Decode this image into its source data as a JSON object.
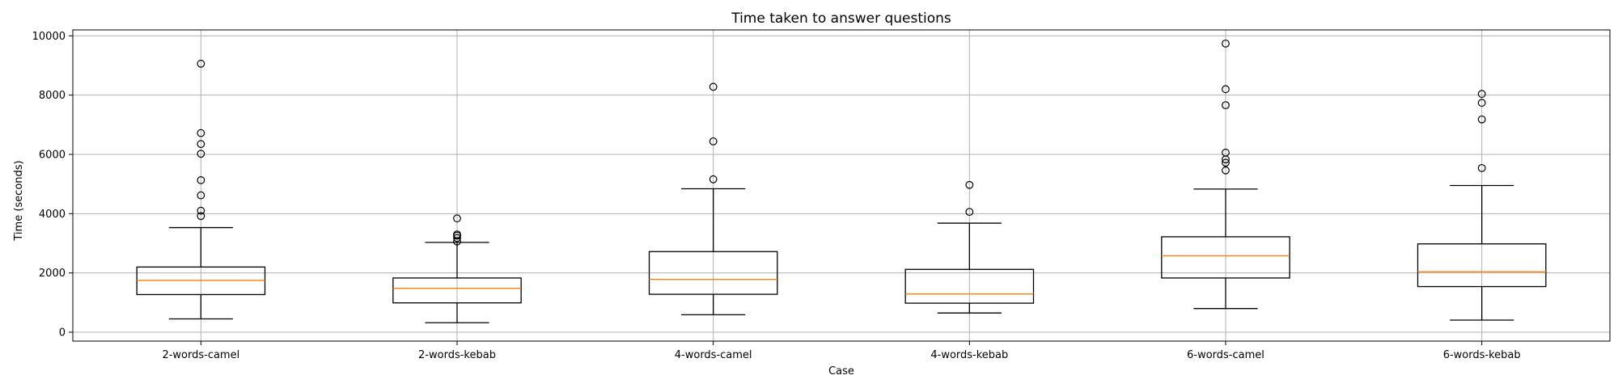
{
  "chart_data": {
    "type": "box",
    "title": "Time taken to answer questions",
    "xlabel": "Case",
    "ylabel": "Time (seconds)",
    "ylim": [
      -300,
      10200
    ],
    "yticks": [
      0,
      2000,
      4000,
      6000,
      8000,
      10000
    ],
    "grid": true,
    "categories": [
      "2-words-camel",
      "2-words-kebab",
      "4-words-camel",
      "4-words-kebab",
      "6-words-camel",
      "6-words-kebab"
    ],
    "boxes": [
      {
        "whisker_low": 450,
        "q1": 1270,
        "median": 1750,
        "q3": 2200,
        "whisker_high": 3530,
        "outliers": [
          3920,
          4100,
          4620,
          5130,
          6020,
          6350,
          6720,
          9060
        ]
      },
      {
        "whisker_low": 320,
        "q1": 990,
        "median": 1480,
        "q3": 1830,
        "whisker_high": 3030,
        "outliers": [
          3060,
          3180,
          3260,
          3300,
          3840
        ]
      },
      {
        "whisker_low": 590,
        "q1": 1280,
        "median": 1780,
        "q3": 2720,
        "whisker_high": 4840,
        "outliers": [
          5160,
          6440,
          8280
        ]
      },
      {
        "whisker_low": 650,
        "q1": 980,
        "median": 1290,
        "q3": 2120,
        "whisker_high": 3680,
        "outliers": [
          4060,
          4970
        ]
      },
      {
        "whisker_low": 800,
        "q1": 1830,
        "median": 2580,
        "q3": 3220,
        "whisker_high": 4830,
        "outliers": [
          5460,
          5720,
          5830,
          6060,
          7660,
          8200,
          9740
        ]
      },
      {
        "whisker_low": 410,
        "q1": 1540,
        "median": 2040,
        "q3": 2980,
        "whisker_high": 4950,
        "outliers": [
          5540,
          7180,
          7740,
          8040
        ]
      }
    ],
    "colors": {
      "box": "#000000",
      "median": "#ff7f0e",
      "grid": "#b0b0b0"
    }
  }
}
